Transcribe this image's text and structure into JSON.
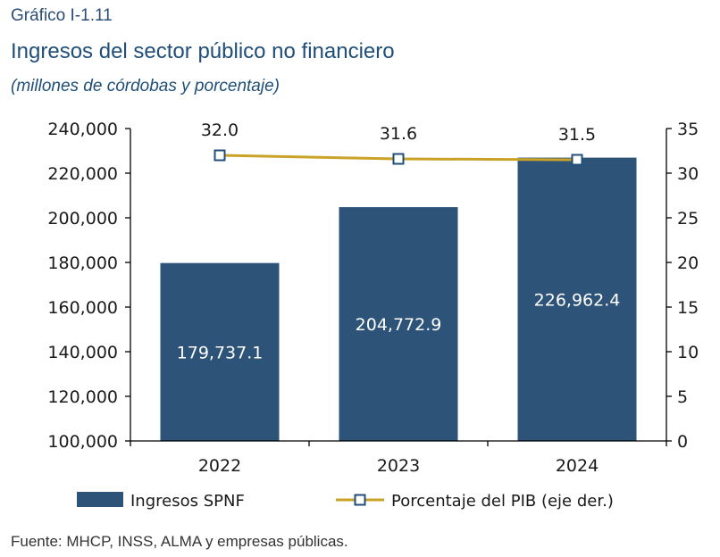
{
  "header": {
    "label": "Gráfico I-1.11",
    "title": "Ingresos del sector público no financiero",
    "subtitle": "(millones de córdobas y porcentaje)"
  },
  "footer": {
    "source": "Fuente: MHCP, INSS, ALMA y empresas públicas."
  },
  "colors": {
    "bar": "#2e5378",
    "line": "#c9a227",
    "marker_fill": "#ffffff",
    "marker_stroke": "#1f4e79"
  },
  "chart_data": {
    "type": "bar",
    "categories": [
      "2022",
      "2023",
      "2024"
    ],
    "series": [
      {
        "name": "Ingresos SPNF",
        "type": "bar",
        "axis": "left",
        "values": [
          179737.1,
          204772.9,
          226962.4
        ],
        "labels": [
          "179,737.1",
          "204,772.9",
          "226,962.4"
        ]
      },
      {
        "name": "Porcentaje del PIB (eje der.)",
        "type": "line",
        "axis": "right",
        "values": [
          32.0,
          31.6,
          31.5
        ],
        "labels": [
          "32.0",
          "31.6",
          "31.5"
        ]
      }
    ],
    "y_left": {
      "min": 100000,
      "max": 240000,
      "step": 20000,
      "ticks": [
        "100,000",
        "120,000",
        "140,000",
        "160,000",
        "180,000",
        "200,000",
        "220,000",
        "240,000"
      ]
    },
    "y_right": {
      "min": 0,
      "max": 35,
      "step": 5,
      "ticks": [
        "0",
        "5",
        "10",
        "15",
        "20",
        "25",
        "30",
        "35"
      ]
    },
    "grid": false,
    "legend_position": "bottom"
  }
}
